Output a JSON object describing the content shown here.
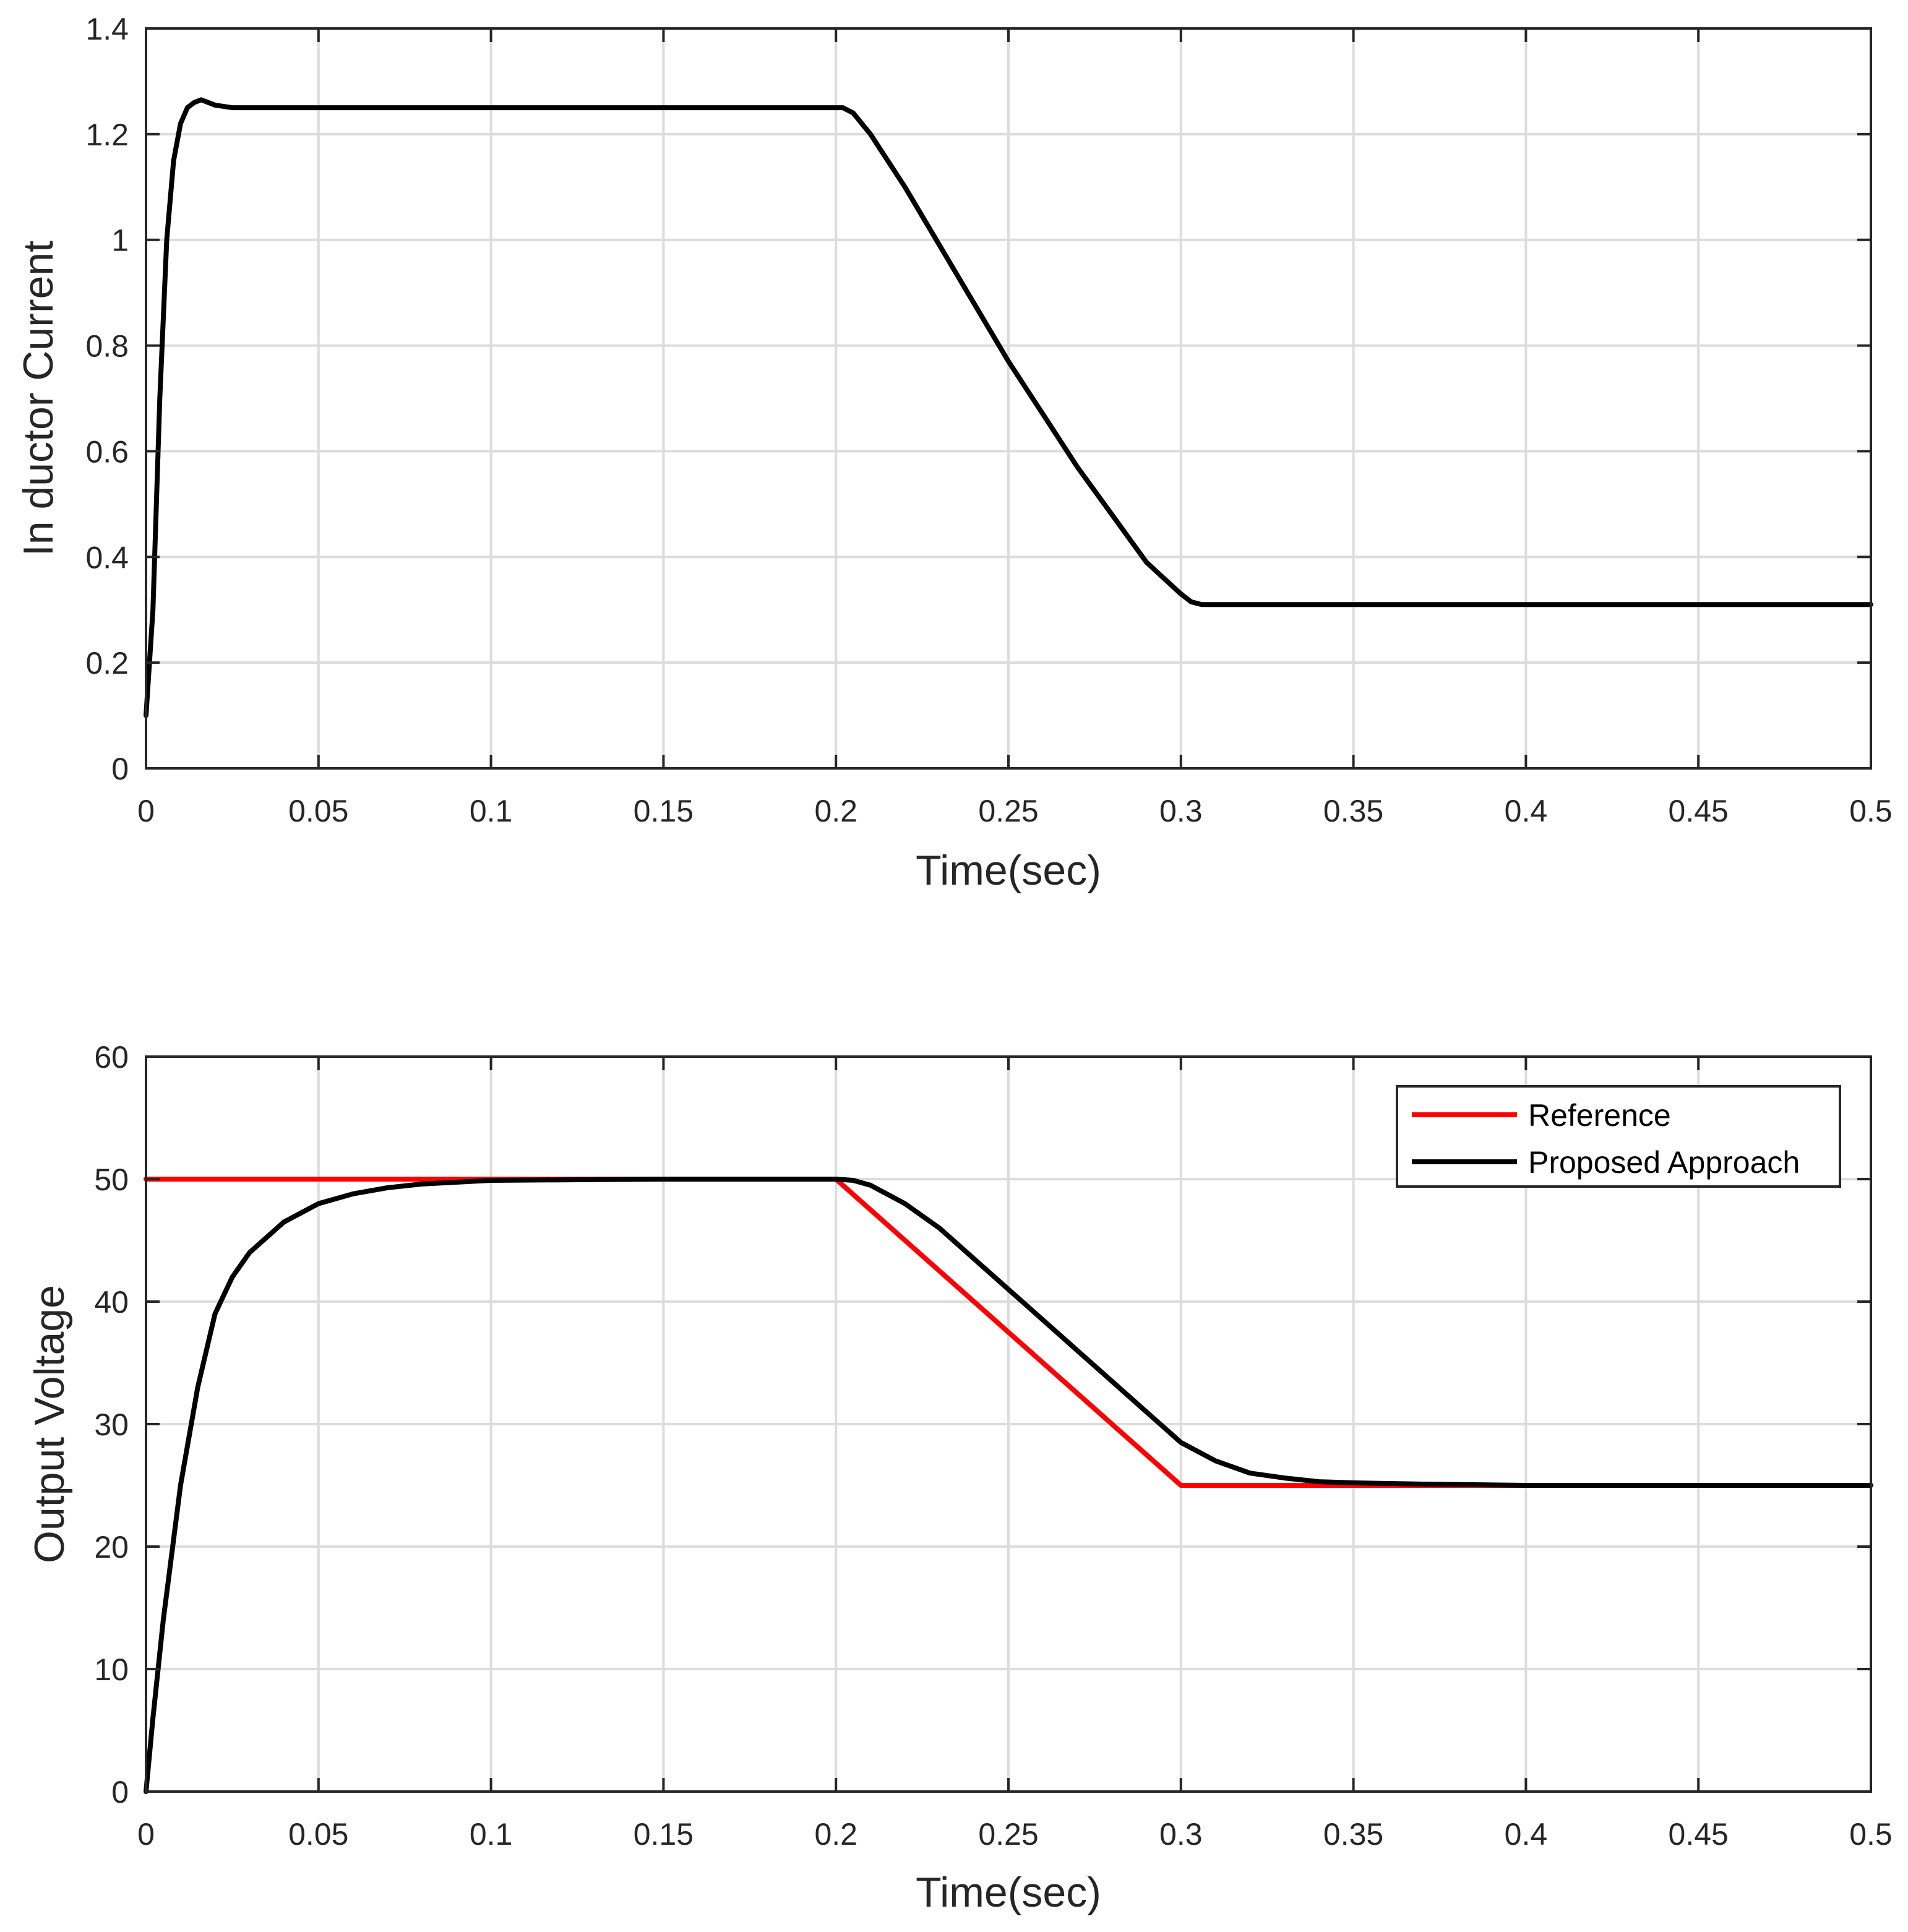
{
  "chart_data": [
    {
      "type": "line",
      "xlabel": "Time(sec)",
      "ylabel": "In ductor Current",
      "xlim": [
        0,
        0.5
      ],
      "ylim": [
        0,
        1.4
      ],
      "xticks": [
        "0",
        "0.05",
        "0.1",
        "0.15",
        "0.2",
        "0.25",
        "0.3",
        "0.35",
        "0.4",
        "0.45",
        "0.5"
      ],
      "yticks": [
        "0",
        "0.2",
        "0.4",
        "0.6",
        "0.8",
        "1",
        "1.2",
        "1.4"
      ],
      "grid": true,
      "legend": null,
      "series": [
        {
          "color": "#000000",
          "x": [
            0.0,
            0.002,
            0.004,
            0.006,
            0.008,
            0.01,
            0.012,
            0.014,
            0.016,
            0.018,
            0.02,
            0.025,
            0.05,
            0.1,
            0.15,
            0.2,
            0.202,
            0.205,
            0.21,
            0.22,
            0.23,
            0.24,
            0.25,
            0.26,
            0.27,
            0.28,
            0.29,
            0.3,
            0.303,
            0.306,
            0.31,
            0.35,
            0.4,
            0.45,
            0.5
          ],
          "y": [
            0.1,
            0.3,
            0.7,
            1.0,
            1.15,
            1.22,
            1.25,
            1.26,
            1.265,
            1.26,
            1.255,
            1.25,
            1.25,
            1.25,
            1.25,
            1.25,
            1.25,
            1.24,
            1.2,
            1.1,
            0.99,
            0.88,
            0.77,
            0.67,
            0.57,
            0.48,
            0.39,
            0.33,
            0.315,
            0.31,
            0.31,
            0.31,
            0.31,
            0.31,
            0.31
          ]
        }
      ]
    },
    {
      "type": "line",
      "xlabel": "Time(sec)",
      "ylabel": "Output Voltage",
      "xlim": [
        0,
        0.5
      ],
      "ylim": [
        0,
        60
      ],
      "xticks": [
        "0",
        "0.05",
        "0.1",
        "0.15",
        "0.2",
        "0.25",
        "0.3",
        "0.35",
        "0.4",
        "0.45",
        "0.5"
      ],
      "yticks": [
        "0",
        "10",
        "20",
        "30",
        "40",
        "50",
        "60"
      ],
      "grid": true,
      "legend": "top-right",
      "series": [
        {
          "name": "Reference",
          "color": "#ff0000",
          "x": [
            0.0,
            0.2,
            0.3,
            0.5
          ],
          "y": [
            50,
            50,
            25,
            25
          ]
        },
        {
          "name": "Proposed Approach",
          "color": "#000000",
          "x": [
            0.0,
            0.002,
            0.005,
            0.01,
            0.015,
            0.02,
            0.025,
            0.03,
            0.04,
            0.05,
            0.06,
            0.07,
            0.08,
            0.1,
            0.15,
            0.2,
            0.205,
            0.21,
            0.22,
            0.23,
            0.24,
            0.25,
            0.26,
            0.27,
            0.28,
            0.29,
            0.3,
            0.31,
            0.32,
            0.33,
            0.34,
            0.35,
            0.37,
            0.4,
            0.45,
            0.5
          ],
          "y": [
            0,
            6,
            14,
            25,
            33,
            39,
            42,
            44,
            46.5,
            48,
            48.8,
            49.3,
            49.6,
            49.9,
            50,
            50,
            49.9,
            49.5,
            48,
            46,
            43.5,
            41,
            38.5,
            36,
            33.5,
            31,
            28.5,
            27,
            26,
            25.6,
            25.3,
            25.2,
            25.1,
            25,
            25,
            25
          ]
        }
      ]
    }
  ]
}
